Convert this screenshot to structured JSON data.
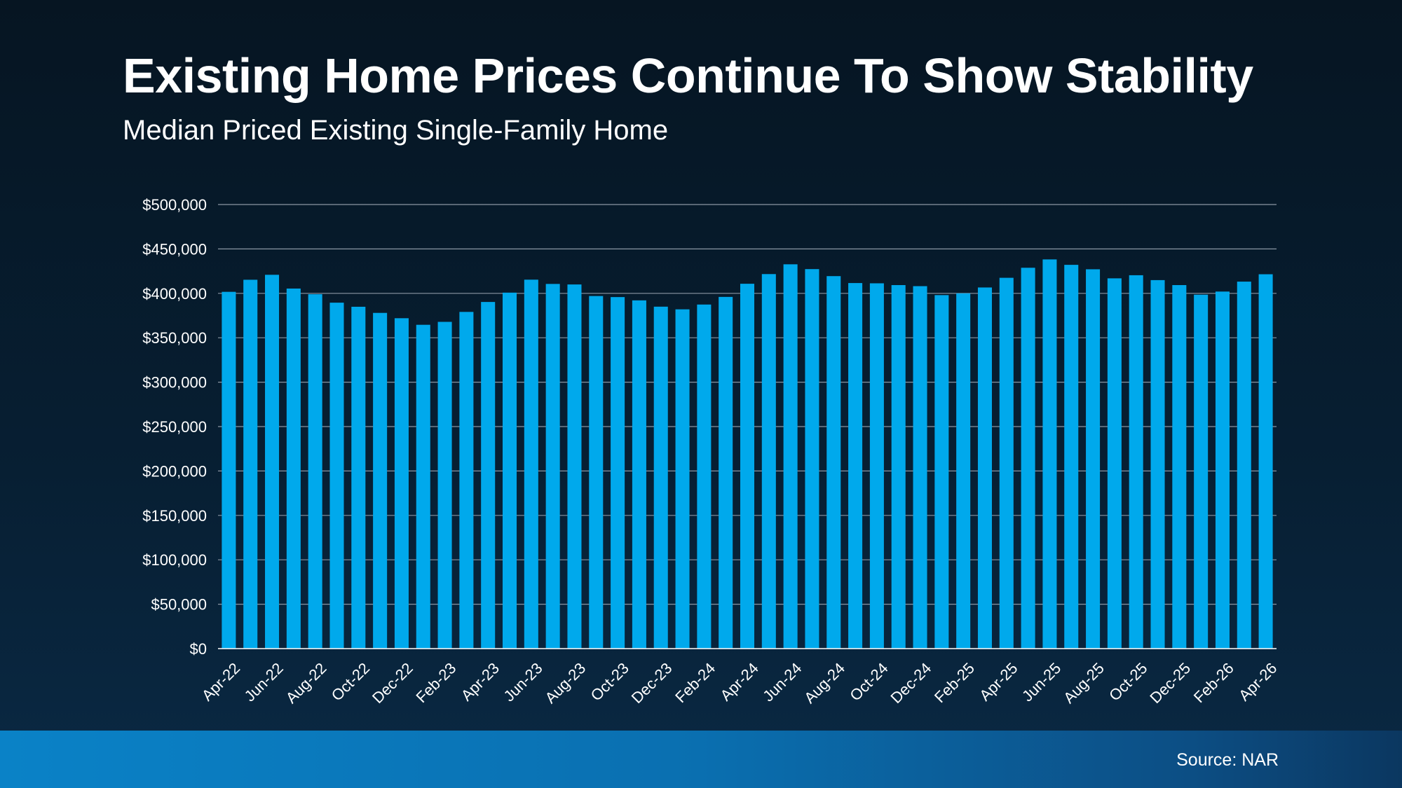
{
  "title": "Existing Home Prices Continue To Show Stability",
  "subtitle": "Median Priced Existing Single-Family Home",
  "source": "Source: NAR",
  "colors": {
    "bar": "#00a9ec",
    "gridline": "#8a96a3",
    "axis": "#ffffff",
    "background_top": "#061522",
    "background_bottom": "#0a2944",
    "footer_left": "#0a82c7",
    "footer_right": "#0b3760"
  },
  "chart_data": {
    "type": "bar",
    "title": "",
    "xlabel": "",
    "ylabel": "",
    "ylim": [
      0,
      500000
    ],
    "grid": true,
    "legend": "none",
    "y_ticks": [
      "$0",
      "$50,000",
      "$100,000",
      "$150,000",
      "$200,000",
      "$250,000",
      "$300,000",
      "$350,000",
      "$400,000",
      "$450,000",
      "$500,000"
    ],
    "x_tick_labels": [
      "Apr-22",
      "Jun-22",
      "Aug-22",
      "Oct-22",
      "Dec-22",
      "Feb-23",
      "Apr-23",
      "Jun-23",
      "Aug-23",
      "Oct-23",
      "Dec-23",
      "Feb-24",
      "Apr-24",
      "Jun-24",
      "Aug-24",
      "Oct-24",
      "Dec-24",
      "Feb-25",
      "Apr-25",
      "Jun-25",
      "Aug-25",
      "Oct-25",
      "Dec-25",
      "Feb-26",
      "Apr-26"
    ],
    "categories": [
      "Apr-22",
      "May-22",
      "Jun-22",
      "Jul-22",
      "Aug-22",
      "Sep-22",
      "Oct-22",
      "Nov-22",
      "Dec-22",
      "Jan-23",
      "Feb-23",
      "Mar-23",
      "Apr-23",
      "May-23",
      "Jun-23",
      "Jul-23",
      "Aug-23",
      "Sep-23",
      "Oct-23",
      "Nov-23",
      "Dec-23",
      "Jan-24",
      "Feb-24",
      "Mar-24",
      "Apr-24",
      "May-24",
      "Jun-24",
      "Jul-24",
      "Aug-24",
      "Sep-24",
      "Oct-24",
      "Nov-24",
      "Dec-24",
      "Jan-25",
      "Feb-25",
      "Mar-25",
      "Apr-25",
      "May-25",
      "Jun-25",
      "Jul-25",
      "Aug-25",
      "Sep-25",
      "Oct-25",
      "Nov-25",
      "Dec-25",
      "Jan-26",
      "Feb-26",
      "Mar-26",
      "Apr-26"
    ],
    "values": [
      401700,
      415300,
      420900,
      405400,
      399000,
      389500,
      384900,
      378000,
      372000,
      364600,
      367900,
      379100,
      390300,
      400800,
      415400,
      410600,
      410000,
      397000,
      395800,
      392100,
      385000,
      382000,
      387400,
      396000,
      410800,
      421700,
      432700,
      427300,
      419400,
      411600,
      411300,
      409300,
      408100,
      398000,
      400000,
      406600,
      417500,
      428800,
      438200,
      432100,
      427100,
      416900,
      420400,
      414900,
      409300,
      398500,
      402000,
      413200,
      421500
    ]
  }
}
